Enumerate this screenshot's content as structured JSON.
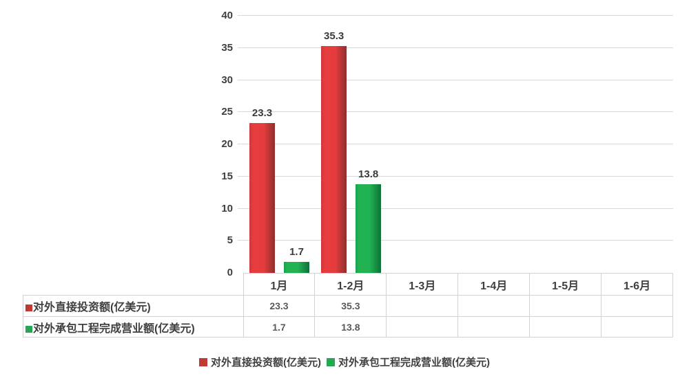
{
  "chart_data": {
    "type": "bar",
    "title": "",
    "xlabel": "",
    "ylabel": "",
    "categories": [
      "1月",
      "1-2月",
      "1-3月",
      "1-4月",
      "1-5月",
      "1-6月"
    ],
    "series": [
      {
        "name": "对外直接投资额(亿美元)",
        "key_color": "#c23934",
        "bar_gradient": [
          "#c8383a",
          "#e73c3e",
          "#8e2e2e"
        ],
        "values": [
          23.3,
          35.3,
          null,
          null,
          null,
          null
        ]
      },
      {
        "name": "对外承包工程完成营业额(亿美元)",
        "key_color": "#27a653",
        "bar_gradient": [
          "#1ba04c",
          "#21b254",
          "#107038"
        ],
        "values": [
          1.7,
          13.8,
          null,
          null,
          null,
          null
        ]
      }
    ],
    "ylim": [
      0,
      40
    ],
    "yticks": [
      0,
      5,
      10,
      15,
      20,
      25,
      30,
      35,
      40
    ],
    "grid": true,
    "show_data_labels": true,
    "show_data_table": true,
    "legend_position": "bottom",
    "colors": {
      "text": "#3f3f3f",
      "gridline": "#d9d9d9",
      "table_border": "#d2d2d2",
      "background": "#ffffff"
    }
  }
}
